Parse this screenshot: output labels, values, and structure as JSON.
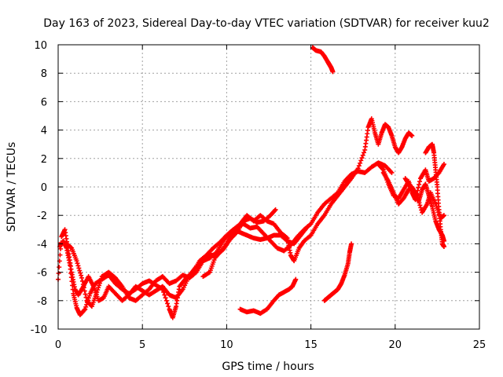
{
  "chart_data": {
    "type": "scatter",
    "title": "Day 163 of 2023, Sidereal Day-to-day VTEC variation (SDTVAR) for receiver kuu2",
    "xlabel": "GPS time / hours",
    "ylabel": "SDTVAR / TECUs",
    "xlim": [
      0,
      25
    ],
    "ylim": [
      -10,
      10
    ],
    "xticks": [
      0,
      5,
      10,
      15,
      20,
      25
    ],
    "yticks": [
      -10,
      -8,
      -6,
      -4,
      -2,
      0,
      2,
      4,
      6,
      8,
      10
    ],
    "xtick_labels": [
      "0",
      "5",
      "10",
      "15",
      "20",
      "25"
    ],
    "ytick_labels": [
      "-10",
      "-8",
      "-6",
      "-4",
      "-2",
      "0",
      "2",
      "4",
      "6",
      "8",
      "10"
    ],
    "grid": true,
    "marker": "+",
    "color": "#ff0000",
    "series": [
      {
        "name": "trace-1",
        "points": [
          [
            0.0,
            -6.5
          ],
          [
            0.2,
            -3.5
          ],
          [
            0.4,
            -3.0
          ],
          [
            0.6,
            -4.5
          ],
          [
            0.8,
            -6.0
          ],
          [
            1.0,
            -7.2
          ],
          [
            1.2,
            -7.6
          ],
          [
            1.5,
            -7.0
          ],
          [
            1.8,
            -6.3
          ],
          [
            2.1,
            -7.0
          ],
          [
            2.4,
            -8.0
          ],
          [
            2.7,
            -7.8
          ],
          [
            3.0,
            -7.0
          ],
          [
            3.4,
            -7.5
          ],
          [
            3.8,
            -8.0
          ],
          [
            4.2,
            -7.6
          ],
          [
            4.6,
            -7.0
          ],
          [
            5.0,
            -7.3
          ],
          [
            5.4,
            -7.6
          ],
          [
            5.8,
            -7.3
          ],
          [
            6.2,
            -7.0
          ],
          [
            6.6,
            -7.6
          ],
          [
            7.0,
            -7.8
          ],
          [
            7.4,
            -7.2
          ],
          [
            7.8,
            -6.2
          ],
          [
            8.2,
            -5.6
          ],
          [
            8.6,
            -5.2
          ],
          [
            9.0,
            -5.0
          ],
          [
            9.4,
            -4.6
          ],
          [
            9.8,
            -3.8
          ],
          [
            10.2,
            -3.2
          ],
          [
            10.6,
            -2.8
          ],
          [
            11.0,
            -2.6
          ],
          [
            11.4,
            -2.9
          ],
          [
            11.8,
            -2.8
          ],
          [
            12.2,
            -3.3
          ],
          [
            12.6,
            -3.8
          ],
          [
            13.0,
            -4.3
          ],
          [
            13.4,
            -4.5
          ],
          [
            13.8,
            -4.1
          ],
          [
            14.2,
            -3.5
          ],
          [
            14.6,
            -3.0
          ],
          [
            15.0,
            -2.6
          ],
          [
            15.4,
            -1.8
          ],
          [
            15.8,
            -1.2
          ],
          [
            16.2,
            -0.8
          ],
          [
            16.6,
            -0.4
          ],
          [
            17.0,
            0.4
          ],
          [
            17.4,
            0.9
          ],
          [
            17.8,
            1.1
          ],
          [
            18.2,
            1.0
          ],
          [
            18.6,
            1.4
          ],
          [
            19.0,
            1.7
          ],
          [
            19.4,
            1.5
          ],
          [
            19.8,
            1.0
          ]
        ]
      },
      {
        "name": "trace-2",
        "points": [
          [
            0.1,
            -4.2
          ],
          [
            0.3,
            -3.8
          ],
          [
            0.5,
            -4.3
          ],
          [
            0.7,
            -5.5
          ],
          [
            0.9,
            -7.5
          ],
          [
            1.1,
            -8.5
          ],
          [
            1.3,
            -9.0
          ],
          [
            1.6,
            -8.6
          ],
          [
            1.9,
            -7.5
          ],
          [
            2.2,
            -6.8
          ],
          [
            2.6,
            -6.5
          ],
          [
            3.0,
            -6.2
          ],
          [
            3.4,
            -6.8
          ],
          [
            3.8,
            -7.2
          ],
          [
            4.2,
            -7.5
          ],
          [
            4.6,
            -7.2
          ],
          [
            5.0,
            -6.8
          ],
          [
            5.4,
            -6.6
          ],
          [
            5.8,
            -6.9
          ],
          [
            6.2,
            -7.2
          ],
          [
            6.6,
            -8.6
          ],
          [
            6.8,
            -9.2
          ],
          [
            7.0,
            -8.4
          ],
          [
            7.2,
            -7.0
          ],
          [
            7.6,
            -6.4
          ],
          [
            8.0,
            -6.0
          ],
          [
            8.4,
            -5.2
          ],
          [
            8.8,
            -4.8
          ],
          [
            9.2,
            -4.3
          ],
          [
            9.6,
            -3.9
          ],
          [
            10.0,
            -3.4
          ],
          [
            10.4,
            -3.0
          ],
          [
            10.8,
            -3.2
          ],
          [
            11.2,
            -3.4
          ],
          [
            11.6,
            -3.6
          ],
          [
            12.0,
            -3.7
          ],
          [
            12.4,
            -3.6
          ],
          [
            12.8,
            -3.4
          ],
          [
            13.2,
            -3.4
          ],
          [
            13.6,
            -3.8
          ],
          [
            14.0,
            -4.0
          ],
          [
            14.4,
            -3.4
          ],
          [
            14.8,
            -2.8
          ]
        ]
      },
      {
        "name": "trace-3",
        "points": [
          [
            0.5,
            -4.0
          ],
          [
            0.8,
            -4.3
          ],
          [
            1.1,
            -5.2
          ],
          [
            1.4,
            -6.4
          ],
          [
            1.7,
            -8.0
          ],
          [
            2.0,
            -8.4
          ],
          [
            2.3,
            -7.4
          ],
          [
            2.6,
            -6.3
          ],
          [
            3.0,
            -6.0
          ],
          [
            3.4,
            -6.4
          ],
          [
            3.8,
            -7.0
          ],
          [
            4.2,
            -7.8
          ],
          [
            4.6,
            -8.0
          ],
          [
            5.0,
            -7.6
          ],
          [
            5.4,
            -7.2
          ],
          [
            5.8,
            -6.6
          ],
          [
            6.2,
            -6.3
          ],
          [
            6.6,
            -6.8
          ],
          [
            7.0,
            -6.6
          ],
          [
            7.4,
            -6.2
          ],
          [
            7.8,
            -6.4
          ],
          [
            8.2,
            -6.0
          ],
          [
            8.6,
            -5.2
          ],
          [
            9.0,
            -4.8
          ],
          [
            9.4,
            -4.8
          ],
          [
            9.8,
            -4.4
          ],
          [
            10.2,
            -3.7
          ],
          [
            10.6,
            -3.2
          ],
          [
            11.0,
            -2.4
          ],
          [
            11.4,
            -2.2
          ],
          [
            11.8,
            -2.5
          ],
          [
            12.2,
            -2.4
          ],
          [
            12.6,
            -2.0
          ],
          [
            12.9,
            -1.6
          ]
        ]
      },
      {
        "name": "trace-4",
        "points": [
          [
            8.6,
            -6.3
          ],
          [
            9.0,
            -6.0
          ],
          [
            9.3,
            -5.0
          ],
          [
            9.6,
            -4.6
          ],
          [
            9.9,
            -4.2
          ],
          [
            10.2,
            -3.6
          ],
          [
            10.5,
            -3.0
          ],
          [
            10.8,
            -2.6
          ],
          [
            11.2,
            -2.0
          ],
          [
            11.6,
            -2.4
          ],
          [
            12.0,
            -2.0
          ],
          [
            12.4,
            -2.4
          ],
          [
            12.8,
            -2.6
          ],
          [
            13.2,
            -3.2
          ],
          [
            13.6,
            -3.6
          ],
          [
            13.8,
            -4.8
          ],
          [
            14.0,
            -5.2
          ],
          [
            14.3,
            -4.3
          ],
          [
            14.6,
            -3.8
          ],
          [
            15.0,
            -3.4
          ],
          [
            15.4,
            -2.6
          ],
          [
            15.8,
            -2.0
          ],
          [
            16.2,
            -1.2
          ],
          [
            16.6,
            -0.6
          ],
          [
            17.0,
            0.0
          ],
          [
            17.4,
            0.6
          ],
          [
            17.8,
            1.3
          ],
          [
            18.2,
            2.6
          ],
          [
            18.4,
            4.2
          ],
          [
            18.6,
            4.8
          ],
          [
            18.8,
            3.8
          ],
          [
            19.0,
            3.0
          ],
          [
            19.2,
            3.8
          ],
          [
            19.4,
            4.4
          ],
          [
            19.6,
            4.2
          ],
          [
            19.8,
            3.6
          ],
          [
            20.0,
            2.8
          ],
          [
            20.2,
            2.4
          ],
          [
            20.4,
            2.8
          ],
          [
            20.6,
            3.4
          ],
          [
            20.8,
            3.8
          ],
          [
            21.0,
            3.6
          ]
        ]
      },
      {
        "name": "trace-5",
        "points": [
          [
            19.0,
            1.6
          ],
          [
            19.3,
            1.2
          ],
          [
            19.6,
            0.2
          ],
          [
            19.9,
            -0.6
          ],
          [
            20.2,
            -0.8
          ],
          [
            20.5,
            -0.2
          ],
          [
            20.8,
            0.4
          ],
          [
            21.0,
            -0.4
          ],
          [
            21.2,
            -0.9
          ],
          [
            21.5,
            0.6
          ],
          [
            21.8,
            1.2
          ],
          [
            22.0,
            0.4
          ],
          [
            22.3,
            0.6
          ],
          [
            22.6,
            1.0
          ],
          [
            22.9,
            1.6
          ]
        ]
      },
      {
        "name": "trace-6",
        "points": [
          [
            19.3,
            1.0
          ],
          [
            19.6,
            0.4
          ],
          [
            19.9,
            -0.4
          ],
          [
            20.2,
            -1.2
          ],
          [
            20.5,
            -0.8
          ],
          [
            20.8,
            -0.2
          ],
          [
            21.0,
            0.0
          ],
          [
            21.3,
            -0.6
          ],
          [
            21.6,
            -1.8
          ],
          [
            21.9,
            -1.2
          ],
          [
            22.1,
            -0.4
          ],
          [
            22.4,
            -1.2
          ],
          [
            22.7,
            -2.2
          ],
          [
            22.9,
            -2.0
          ]
        ]
      },
      {
        "name": "trace-7",
        "points": [
          [
            20.6,
            0.6
          ],
          [
            20.8,
            0.2
          ],
          [
            21.0,
            -0.2
          ],
          [
            21.2,
            -0.6
          ],
          [
            21.4,
            -1.0
          ],
          [
            21.6,
            -0.2
          ],
          [
            21.8,
            0.2
          ],
          [
            22.0,
            -0.6
          ],
          [
            22.2,
            -1.4
          ],
          [
            22.4,
            -2.4
          ],
          [
            22.6,
            -3.0
          ],
          [
            22.8,
            -3.4
          ],
          [
            22.9,
            -3.8
          ]
        ]
      },
      {
        "name": "trace-8",
        "points": [
          [
            21.8,
            2.4
          ],
          [
            22.0,
            2.8
          ],
          [
            22.2,
            3.0
          ],
          [
            22.3,
            2.4
          ],
          [
            22.4,
            1.2
          ],
          [
            22.5,
            0.0
          ],
          [
            22.6,
            -1.6
          ],
          [
            22.7,
            -3.0
          ],
          [
            22.8,
            -4.0
          ],
          [
            22.9,
            -4.2
          ]
        ]
      },
      {
        "name": "trace-9",
        "points": [
          [
            15.1,
            9.8
          ],
          [
            15.3,
            9.6
          ],
          [
            15.6,
            9.5
          ],
          [
            15.8,
            9.2
          ],
          [
            16.0,
            8.8
          ],
          [
            16.1,
            8.6
          ],
          [
            16.2,
            8.4
          ],
          [
            16.3,
            8.1
          ]
        ]
      },
      {
        "name": "trace-10",
        "points": [
          [
            10.8,
            -8.6
          ],
          [
            11.2,
            -8.8
          ],
          [
            11.6,
            -8.7
          ],
          [
            12.0,
            -8.9
          ],
          [
            12.4,
            -8.6
          ],
          [
            12.8,
            -8.0
          ],
          [
            13.1,
            -7.6
          ],
          [
            13.4,
            -7.4
          ],
          [
            13.7,
            -7.2
          ],
          [
            13.9,
            -7.0
          ],
          [
            14.1,
            -6.5
          ]
        ]
      },
      {
        "name": "trace-11",
        "points": [
          [
            15.8,
            -8.0
          ],
          [
            16.0,
            -7.8
          ],
          [
            16.2,
            -7.6
          ],
          [
            16.4,
            -7.4
          ],
          [
            16.6,
            -7.2
          ],
          [
            16.8,
            -6.8
          ],
          [
            17.0,
            -6.2
          ],
          [
            17.2,
            -5.4
          ],
          [
            17.3,
            -4.6
          ],
          [
            17.4,
            -4.0
          ]
        ]
      }
    ]
  }
}
